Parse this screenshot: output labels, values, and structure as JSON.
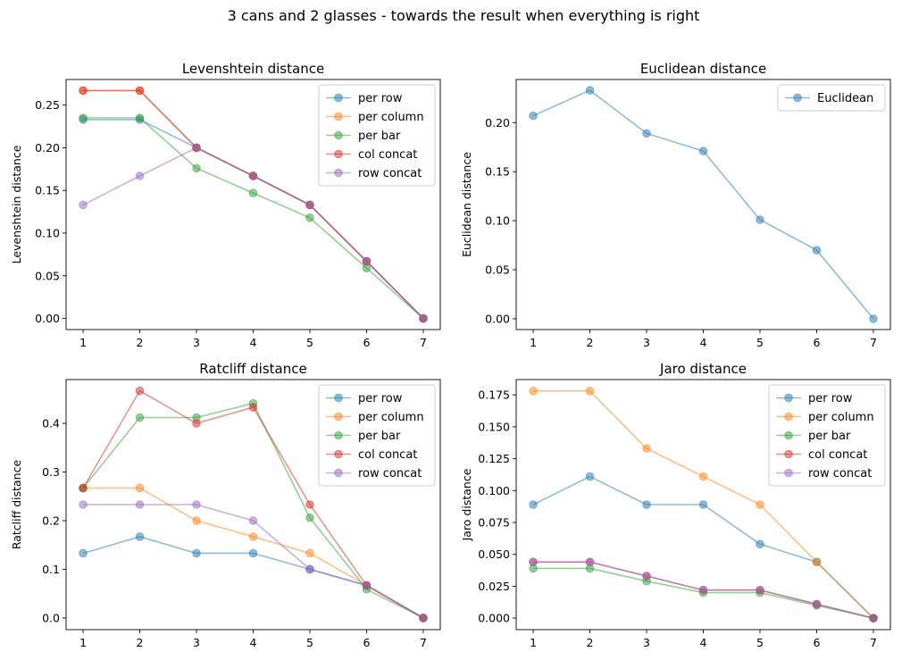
{
  "figure": {
    "suptitle": "3 cans and 2 glasses - towards the result when everything is right"
  },
  "colors": {
    "per row": "#1f77b4",
    "per column": "#ff7f0e",
    "per bar": "#2ca02c",
    "col concat": "#d62728",
    "row concat": "#9467bd",
    "Euclidean": "#1f77b4"
  },
  "chart_data": [
    {
      "type": "line",
      "title": "Levenshtein distance",
      "xlabel": "",
      "ylabel": "Levenshtein distance",
      "x": [
        1,
        2,
        3,
        4,
        5,
        6,
        7
      ],
      "xlim": [
        0.7,
        7.3
      ],
      "ylim": [
        -0.013,
        0.28
      ],
      "yticks": [
        0.0,
        0.05,
        0.1,
        0.15,
        0.2,
        0.25
      ],
      "ytick_labels": [
        "0.00",
        "0.05",
        "0.10",
        "0.15",
        "0.20",
        "0.25"
      ],
      "legend": "top-right",
      "series": [
        {
          "name": "per row",
          "values": [
            0.233,
            0.233,
            0.2,
            0.167,
            0.133,
            0.067,
            0.0
          ]
        },
        {
          "name": "per column",
          "values": [
            0.267,
            0.267,
            0.2,
            0.167,
            0.133,
            0.067,
            0.0
          ]
        },
        {
          "name": "per bar",
          "values": [
            0.235,
            0.235,
            0.176,
            0.147,
            0.118,
            0.059,
            0.0
          ]
        },
        {
          "name": "col concat",
          "values": [
            0.267,
            0.267,
            0.2,
            0.167,
            0.133,
            0.067,
            0.0
          ]
        },
        {
          "name": "row concat",
          "values": [
            0.133,
            0.167,
            0.2,
            0.167,
            0.133,
            0.067,
            0.0
          ]
        }
      ]
    },
    {
      "type": "line",
      "title": "Euclidean distance",
      "xlabel": "",
      "ylabel": "Euclidean distance",
      "x": [
        1,
        2,
        3,
        4,
        5,
        6,
        7
      ],
      "xlim": [
        0.7,
        7.3
      ],
      "ylim": [
        -0.011,
        0.244
      ],
      "yticks": [
        0.0,
        0.05,
        0.1,
        0.15,
        0.2
      ],
      "ytick_labels": [
        "0.00",
        "0.05",
        "0.10",
        "0.15",
        "0.20"
      ],
      "legend": "top-right",
      "series": [
        {
          "name": "Euclidean",
          "values": [
            0.207,
            0.233,
            0.189,
            0.171,
            0.101,
            0.07,
            0.0
          ]
        }
      ]
    },
    {
      "type": "line",
      "title": "Ratcliff distance",
      "xlabel": "",
      "ylabel": "Ratcliff distance",
      "x": [
        1,
        2,
        3,
        4,
        5,
        6,
        7
      ],
      "xlim": [
        0.7,
        7.3
      ],
      "ylim": [
        -0.024,
        0.49
      ],
      "yticks": [
        0.0,
        0.1,
        0.2,
        0.3,
        0.4
      ],
      "ytick_labels": [
        "0.0",
        "0.1",
        "0.2",
        "0.3",
        "0.4"
      ],
      "legend": "top-right",
      "series": [
        {
          "name": "per row",
          "values": [
            0.133,
            0.167,
            0.133,
            0.133,
            0.1,
            0.067,
            0.0
          ]
        },
        {
          "name": "per column",
          "values": [
            0.267,
            0.267,
            0.2,
            0.167,
            0.133,
            0.067,
            0.0
          ]
        },
        {
          "name": "per bar",
          "values": [
            0.267,
            0.412,
            0.412,
            0.441,
            0.206,
            0.059,
            0.0
          ]
        },
        {
          "name": "col concat",
          "values": [
            0.267,
            0.467,
            0.4,
            0.433,
            0.233,
            0.067,
            0.0
          ]
        },
        {
          "name": "row concat",
          "values": [
            0.233,
            0.233,
            0.233,
            0.2,
            0.1,
            0.067,
            0.0
          ]
        }
      ]
    },
    {
      "type": "line",
      "title": "Jaro distance",
      "xlabel": "",
      "ylabel": "Jaro distance",
      "x": [
        1,
        2,
        3,
        4,
        5,
        6,
        7
      ],
      "xlim": [
        0.7,
        7.3
      ],
      "ylim": [
        -0.009,
        0.187
      ],
      "yticks": [
        0.0,
        0.025,
        0.05,
        0.075,
        0.1,
        0.125,
        0.15,
        0.175
      ],
      "ytick_labels": [
        "0.000",
        "0.025",
        "0.050",
        "0.075",
        "0.100",
        "0.125",
        "0.150",
        "0.175"
      ],
      "legend": "top-right",
      "series": [
        {
          "name": "per row",
          "values": [
            0.089,
            0.111,
            0.089,
            0.089,
            0.058,
            0.044,
            0.0
          ]
        },
        {
          "name": "per column",
          "values": [
            0.178,
            0.178,
            0.133,
            0.111,
            0.089,
            0.044,
            0.0
          ]
        },
        {
          "name": "per bar",
          "values": [
            0.039,
            0.039,
            0.029,
            0.02,
            0.02,
            0.01,
            0.0
          ]
        },
        {
          "name": "col concat",
          "values": [
            0.044,
            0.044,
            0.033,
            0.022,
            0.022,
            0.011,
            0.0
          ]
        },
        {
          "name": "row concat",
          "values": [
            0.044,
            0.044,
            0.033,
            0.022,
            0.022,
            0.011,
            0.0
          ]
        }
      ]
    }
  ]
}
